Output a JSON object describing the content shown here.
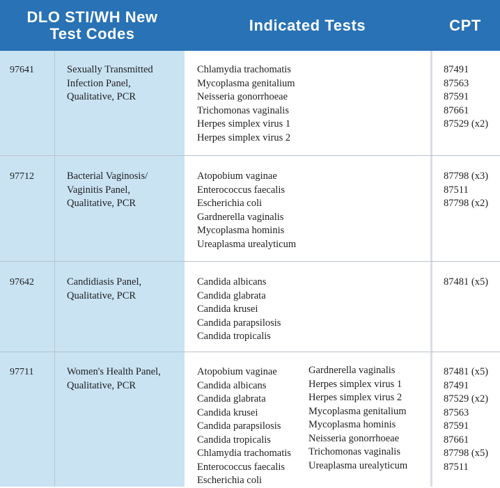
{
  "header": {
    "codes_line1": "DLO STI/WH New",
    "codes_line2": "Test Codes",
    "tests": "Indicated Tests",
    "cpt": "CPT"
  },
  "rows": [
    {
      "code": "97641",
      "name_lines": [
        "Sexually Transmitted",
        "Infection Panel,",
        "Qualitative, PCR"
      ],
      "tests_col1": [
        "Chlamydia trachomatis",
        "Mycoplasma genitalium",
        "Neisseria gonorrhoeae",
        "Trichomonas vaginalis",
        "Herpes simplex virus 1",
        "Herpes simplex virus 2"
      ],
      "tests_col2": [],
      "cpt": [
        "87491",
        "87563",
        "87591",
        "87661",
        "87529 (x2)"
      ]
    },
    {
      "code": "97712",
      "name_lines": [
        "Bacterial Vaginosis/",
        "Vaginitis Panel,",
        "Qualitative, PCR"
      ],
      "tests_col1": [
        "Atopobium vaginae",
        "Enterococcus faecalis",
        "Escherichia coli",
        "Gardnerella vaginalis",
        "Mycoplasma hominis",
        "Ureaplasma urealyticum"
      ],
      "tests_col2": [],
      "cpt": [
        "87798 (x3)",
        "87511",
        "87798 (x2)"
      ]
    },
    {
      "code": "97642",
      "name_lines": [
        "Candidiasis Panel,",
        "Qualitative, PCR"
      ],
      "tests_col1": [
        "Candida albicans",
        "Candida glabrata",
        "Candida krusei",
        "Candida parapsilosis",
        "Candida tropicalis"
      ],
      "tests_col2": [],
      "cpt": [
        "87481 (x5)"
      ]
    },
    {
      "code": "97711",
      "name_lines": [
        "Women's Health Panel,",
        "Qualitative, PCR"
      ],
      "tests_col1": [
        "Atopobium vaginae",
        "Candida albicans",
        "Candida glabrata",
        "Candida krusei",
        "Candida parapsilosis",
        "Candida tropicalis",
        "Chlamydia trachomatis",
        "Enterococcus faecalis",
        "Escherichia coli"
      ],
      "tests_col2": [
        "Gardnerella vaginalis",
        "Herpes simplex virus 1",
        "Herpes simplex virus 2",
        "Mycoplasma genitalium",
        "Mycoplasma hominis",
        "Neisseria gonorrhoeae",
        "Trichomonas vaginalis",
        "Ureaplasma urealyticum"
      ],
      "cpt": [
        "87481 (x5)",
        "87491",
        "87529 (x2)",
        "87563",
        "87591",
        "87661",
        "87798 (x5)",
        "87511"
      ]
    }
  ],
  "colors": {
    "header_bg": "#2872b5",
    "header_text": "#ffffff",
    "left_column_bg": "#c9e3f3",
    "body_text": "#1e1e1e"
  }
}
